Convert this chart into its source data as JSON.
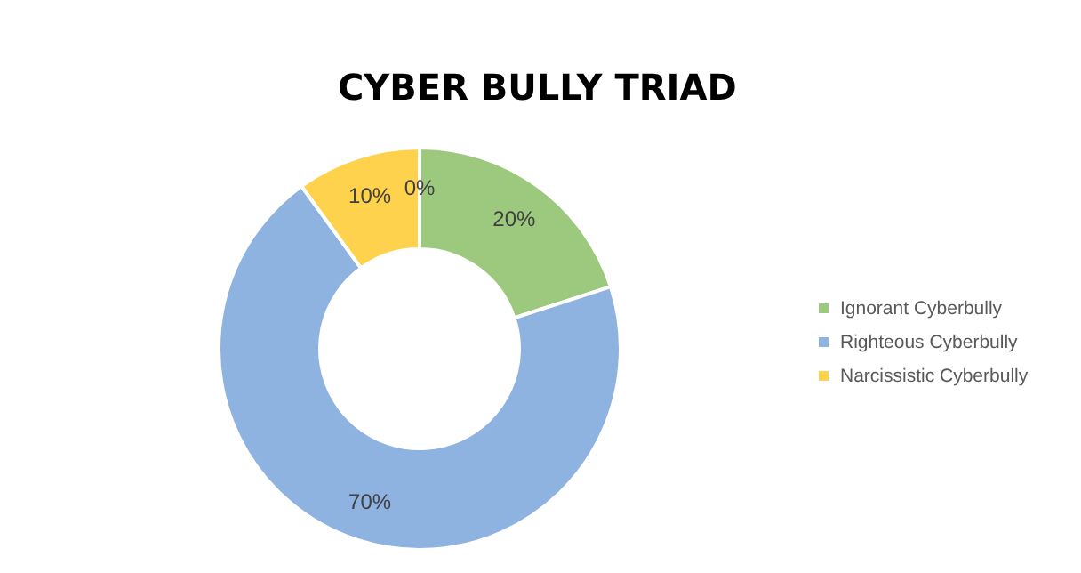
{
  "chart_data": {
    "type": "donut",
    "title": "CYBER BULLY TRIAD",
    "categories": [
      "Ignorant Cyberbully",
      "Righteous Cyberbully",
      "Narcissistic Cyberbully",
      null
    ],
    "values": [
      20,
      70,
      10,
      0
    ],
    "colors": [
      "#9cc97e",
      "#8fb3e0",
      "#ffd24d",
      "#a5a5a5"
    ],
    "value_labels": [
      "20%",
      "70%",
      "10%",
      "0%"
    ],
    "legend": "right"
  }
}
